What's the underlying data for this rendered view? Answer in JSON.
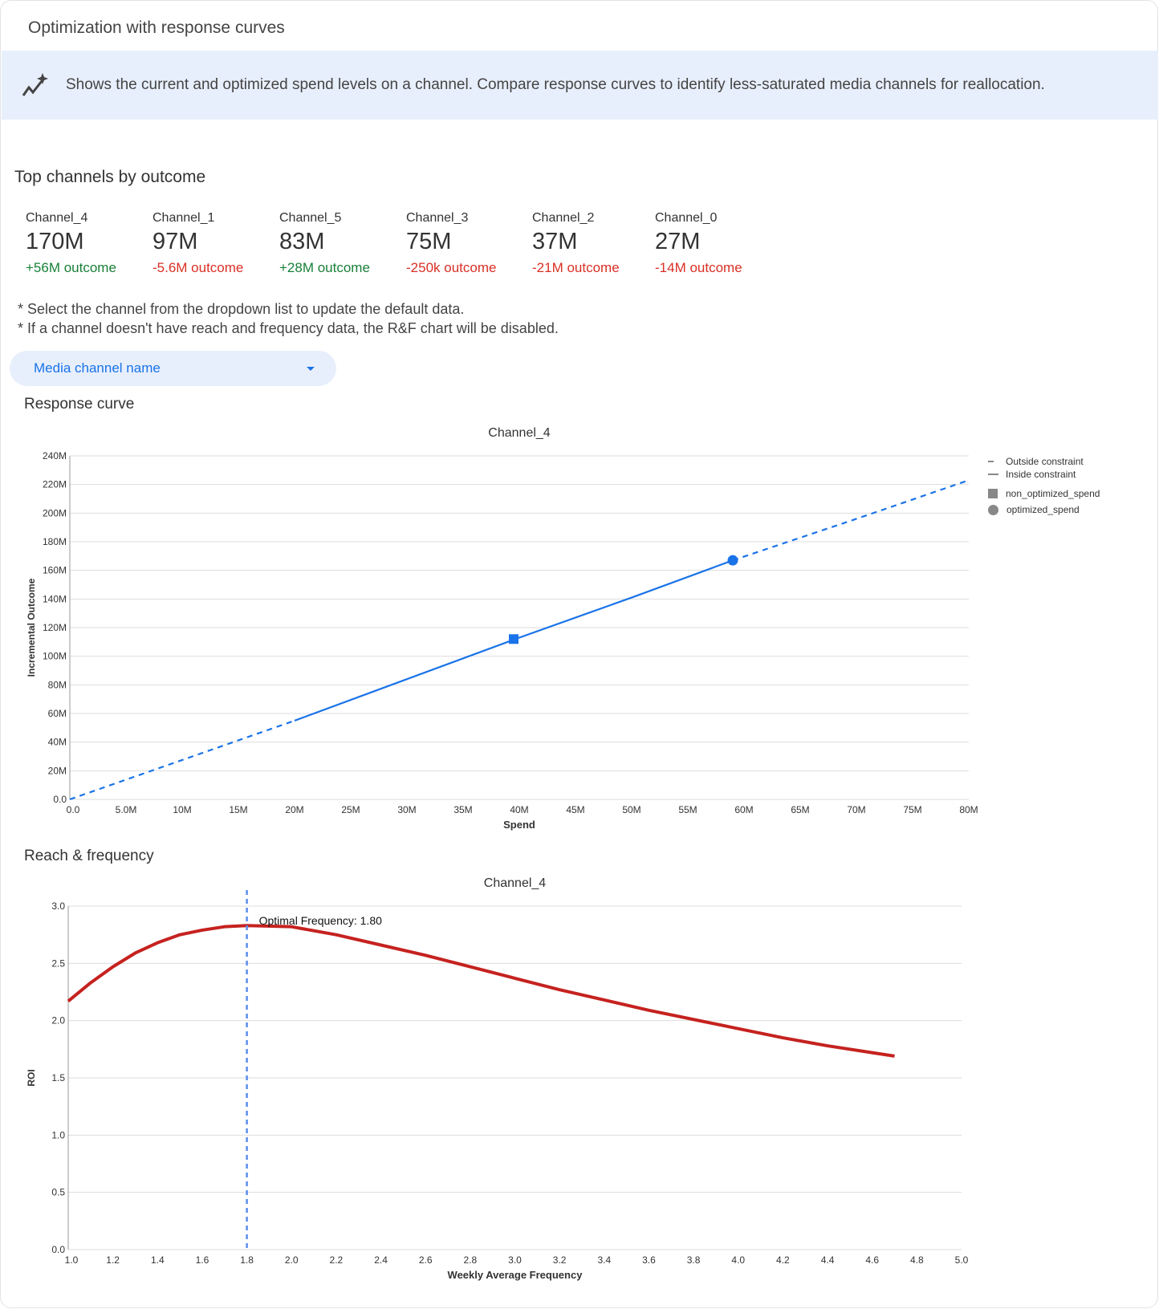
{
  "header": {
    "title": "Optimization with response curves"
  },
  "banner": {
    "icon": "sparkline-icon",
    "text": "Shows the current and optimized spend levels on a channel. Compare response curves to identify less-saturated media channels for reallocation."
  },
  "top_channels": {
    "heading": "Top channels by outcome",
    "items": [
      {
        "name": "Channel_4",
        "value": "170M",
        "delta": "+56M outcome",
        "positive": true
      },
      {
        "name": "Channel_1",
        "value": "97M",
        "delta": "-5.6M outcome",
        "positive": false
      },
      {
        "name": "Channel_5",
        "value": "83M",
        "delta": "+28M outcome",
        "positive": true
      },
      {
        "name": "Channel_3",
        "value": "75M",
        "delta": "-250k outcome",
        "positive": false
      },
      {
        "name": "Channel_2",
        "value": "37M",
        "delta": "-21M outcome",
        "positive": false
      },
      {
        "name": "Channel_0",
        "value": "27M",
        "delta": "-14M outcome",
        "positive": false
      }
    ]
  },
  "notes": [
    "* Select the channel from the dropdown list to update the default data.",
    "* If a channel doesn't have reach and frequency data, the R&F chart will be disabled."
  ],
  "dropdown": {
    "label": "Media channel name"
  },
  "colors": {
    "positive": "#188038",
    "negative": "#d93025",
    "curve": "#1a73e8",
    "rf": "#c5221f",
    "accent": "#1a73e8"
  },
  "response_section": {
    "heading": "Response curve"
  },
  "rf_section": {
    "heading": "Reach & frequency"
  },
  "chart_data": [
    {
      "type": "line",
      "title": "Channel_4",
      "xlabel": "Spend",
      "ylabel": "Incremental Outcome",
      "xlim": [
        0,
        80000000
      ],
      "ylim": [
        0,
        240000000
      ],
      "grid": true,
      "legend_placement": "right",
      "xticks": [
        0,
        5000000,
        10000000,
        15000000,
        20000000,
        25000000,
        30000000,
        35000000,
        40000000,
        45000000,
        50000000,
        55000000,
        60000000,
        65000000,
        70000000,
        75000000,
        80000000
      ],
      "xtick_labels": [
        "0.0",
        "5.0M",
        "10M",
        "15M",
        "20M",
        "25M",
        "30M",
        "35M",
        "40M",
        "45M",
        "50M",
        "55M",
        "60M",
        "65M",
        "70M",
        "75M",
        "80M"
      ],
      "yticks": [
        0,
        20000000,
        40000000,
        60000000,
        80000000,
        100000000,
        120000000,
        140000000,
        160000000,
        180000000,
        200000000,
        220000000,
        240000000
      ],
      "ytick_labels": [
        "0.0",
        "20M",
        "40M",
        "60M",
        "80M",
        "100M",
        "120M",
        "140M",
        "160M",
        "180M",
        "200M",
        "220M",
        "240M"
      ],
      "legend": [
        "Outside constraint",
        "Inside constraint",
        "non_optimized_spend",
        "optimized_spend"
      ],
      "curve": {
        "x": [
          0,
          10000000,
          20000000,
          30000000,
          40000000,
          50000000,
          59000000,
          70000000,
          80000000
        ],
        "y": [
          0,
          27500000,
          55000000,
          84000000,
          113000000,
          141000000,
          167000000,
          196000000,
          223000000
        ]
      },
      "inside_constraint_range": [
        20000000,
        59000000
      ],
      "non_optimized_spend": {
        "x": 39500000,
        "y": 112000000
      },
      "optimized_spend": {
        "x": 59000000,
        "y": 167000000
      }
    },
    {
      "type": "line",
      "title": "Channel_4",
      "xlabel": "Weekly Average Frequency",
      "ylabel": "ROI",
      "xlim": [
        1.0,
        5.0
      ],
      "ylim": [
        0,
        3.0
      ],
      "grid": true,
      "xticks": [
        1.0,
        1.2,
        1.4,
        1.6,
        1.8,
        2.0,
        2.2,
        2.4,
        2.6,
        2.8,
        3.0,
        3.2,
        3.4,
        3.6,
        3.8,
        4.0,
        4.2,
        4.4,
        4.6,
        4.8,
        5.0
      ],
      "xtick_labels": [
        "1.0",
        "1.2",
        "1.4",
        "1.6",
        "1.8",
        "2.0",
        "2.2",
        "2.4",
        "2.6",
        "2.8",
        "3.0",
        "3.2",
        "3.4",
        "3.6",
        "3.8",
        "4.0",
        "4.2",
        "4.4",
        "4.6",
        "4.8",
        "5.0"
      ],
      "yticks": [
        0,
        0.5,
        1.0,
        1.5,
        2.0,
        2.5,
        3.0
      ],
      "ytick_labels": [
        "0.0",
        "0.5",
        "1.0",
        "1.5",
        "2.0",
        "2.5",
        "3.0"
      ],
      "x": [
        1.0,
        1.1,
        1.2,
        1.3,
        1.4,
        1.5,
        1.6,
        1.7,
        1.8,
        2.0,
        2.2,
        2.4,
        2.6,
        2.8,
        3.0,
        3.2,
        3.4,
        3.6,
        3.8,
        4.0,
        4.2,
        4.4,
        4.6,
        4.7
      ],
      "y": [
        2.17,
        2.33,
        2.47,
        2.59,
        2.68,
        2.75,
        2.79,
        2.82,
        2.83,
        2.82,
        2.75,
        2.66,
        2.57,
        2.47,
        2.37,
        2.27,
        2.18,
        2.09,
        2.01,
        1.93,
        1.85,
        1.78,
        1.72,
        1.69
      ],
      "optimal_frequency": 1.8,
      "annotation": "Optimal Frequency: 1.80"
    }
  ]
}
